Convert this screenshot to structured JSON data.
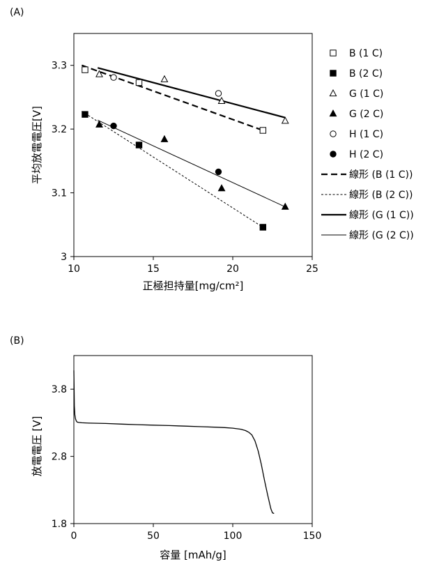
{
  "chart_data": [
    {
      "panel_label": "(A)",
      "type": "scatter",
      "xlabel": "正極担持量[mg/cm²]",
      "ylabel": "平均放電電圧[V]",
      "xlim": [
        10,
        25
      ],
      "ylim": [
        3.0,
        3.35
      ],
      "x_ticks": [
        10,
        15,
        20,
        25
      ],
      "y_ticks": [
        3.0,
        3.1,
        3.2,
        3.3
      ],
      "x_tick_labels": [
        "10",
        "15",
        "20",
        "25"
      ],
      "y_tick_labels": [
        "3",
        "3.1",
        "3.2",
        "3.3"
      ],
      "grid": false,
      "legend_position": "right",
      "series": [
        {
          "name": "B (1 C)",
          "marker": "square-open",
          "x": [
            10.7,
            14.1,
            21.9
          ],
          "y": [
            3.293,
            3.273,
            3.198
          ]
        },
        {
          "name": "B (2 C)",
          "marker": "square-filled",
          "x": [
            10.7,
            14.1,
            21.9
          ],
          "y": [
            3.223,
            3.175,
            3.046
          ]
        },
        {
          "name": "G (1 C)",
          "marker": "triangle-open",
          "x": [
            11.6,
            15.7,
            19.3,
            23.3
          ],
          "y": [
            3.286,
            3.278,
            3.244,
            3.213
          ]
        },
        {
          "name": "G (2 C)",
          "marker": "triangle-filled",
          "x": [
            11.6,
            15.7,
            19.3,
            23.3
          ],
          "y": [
            3.207,
            3.184,
            3.107,
            3.078
          ]
        },
        {
          "name": "H (1 C)",
          "marker": "circle-open",
          "x": [
            12.5,
            19.1
          ],
          "y": [
            3.281,
            3.256
          ]
        },
        {
          "name": "H (2 C)",
          "marker": "circle-filled",
          "x": [
            12.5,
            19.1
          ],
          "y": [
            3.205,
            3.133
          ]
        },
        {
          "name": "線形 (B (1 C))",
          "line_style": "dash-thick",
          "x": [
            10.5,
            21.9
          ],
          "y": [
            3.3,
            3.198
          ]
        },
        {
          "name": "線形 (B (2 C))",
          "line_style": "dash-thin",
          "x": [
            10.5,
            21.9
          ],
          "y": [
            3.228,
            3.046
          ]
        },
        {
          "name": "線形 (G (1 C))",
          "line_style": "solid-thick",
          "x": [
            11.5,
            23.3
          ],
          "y": [
            3.296,
            3.218
          ]
        },
        {
          "name": "線形 (G (2 C))",
          "line_style": "solid-thin",
          "x": [
            11.5,
            23.3
          ],
          "y": [
            3.214,
            3.078
          ]
        }
      ]
    },
    {
      "panel_label": "(B)",
      "type": "line",
      "xlabel": "容量 [mAh/g]",
      "ylabel": "放電電圧 [V]",
      "xlim": [
        0,
        150
      ],
      "ylim": [
        1.8,
        4.3
      ],
      "x_ticks": [
        0,
        50,
        100,
        150
      ],
      "y_ticks": [
        1.8,
        2.8,
        3.8
      ],
      "x_tick_labels": [
        "0",
        "50",
        "100",
        "150"
      ],
      "y_tick_labels": [
        "1.8",
        "2.8",
        "3.8"
      ],
      "grid": false,
      "series": [
        {
          "x": [
            0,
            0.3,
            0.6,
            1,
            1.5,
            2,
            3,
            5,
            10,
            20,
            30,
            40,
            50,
            60,
            70,
            80,
            90,
            95,
            100,
            105,
            108,
            110,
            112,
            114,
            116,
            118,
            120,
            122,
            124,
            125,
            126
          ],
          "y": [
            4.08,
            3.55,
            3.42,
            3.36,
            3.33,
            3.31,
            3.305,
            3.3,
            3.295,
            3.29,
            3.28,
            3.272,
            3.265,
            3.258,
            3.25,
            3.242,
            3.234,
            3.228,
            3.22,
            3.205,
            3.185,
            3.16,
            3.12,
            3.03,
            2.88,
            2.68,
            2.44,
            2.22,
            2.02,
            1.96,
            1.95
          ]
        }
      ]
    }
  ]
}
